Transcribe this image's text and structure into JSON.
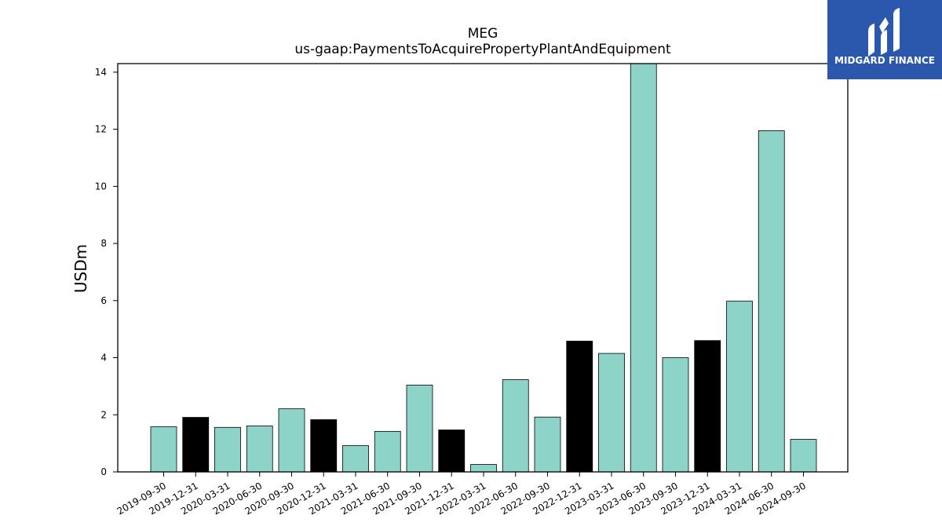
{
  "brand": {
    "name": "MIDGARD FINANCE",
    "color": "#2b58ad",
    "icon": "midgard-finance-logo-icon"
  },
  "colors": {
    "bar_quarter": "#8dd3c7",
    "bar_year_end": "#000000"
  },
  "chart_data": {
    "type": "bar",
    "title": "MEG",
    "subtitle": "us-gaap:PaymentsToAcquirePropertyPlantAndEquipment",
    "xlabel": "",
    "ylabel": "USDm",
    "ylim": [
      0,
      14.3
    ],
    "yticks": [
      0,
      2,
      4,
      6,
      8,
      10,
      12,
      14
    ],
    "grid": false,
    "categories": [
      "2019-09-30",
      "2019-12-31",
      "2020-03-31",
      "2020-06-30",
      "2020-09-30",
      "2020-12-31",
      "2021-03-31",
      "2021-06-30",
      "2021-09-30",
      "2021-12-31",
      "2022-03-31",
      "2022-06-30",
      "2022-09-30",
      "2022-12-31",
      "2023-03-31",
      "2023-06-30",
      "2023-09-30",
      "2023-12-31",
      "2024-03-31",
      "2024-06-30",
      "2024-09-30"
    ],
    "values": [
      1.58,
      1.91,
      1.56,
      1.61,
      2.21,
      1.83,
      0.92,
      1.42,
      3.04,
      1.47,
      0.26,
      3.23,
      1.92,
      4.58,
      4.15,
      14.35,
      4.0,
      4.6,
      5.98,
      11.95,
      1.14
    ],
    "bar_colors": [
      "#8dd3c7",
      "#000000",
      "#8dd3c7",
      "#8dd3c7",
      "#8dd3c7",
      "#000000",
      "#8dd3c7",
      "#8dd3c7",
      "#8dd3c7",
      "#000000",
      "#8dd3c7",
      "#8dd3c7",
      "#8dd3c7",
      "#000000",
      "#8dd3c7",
      "#8dd3c7",
      "#8dd3c7",
      "#000000",
      "#8dd3c7",
      "#8dd3c7",
      "#8dd3c7"
    ]
  }
}
